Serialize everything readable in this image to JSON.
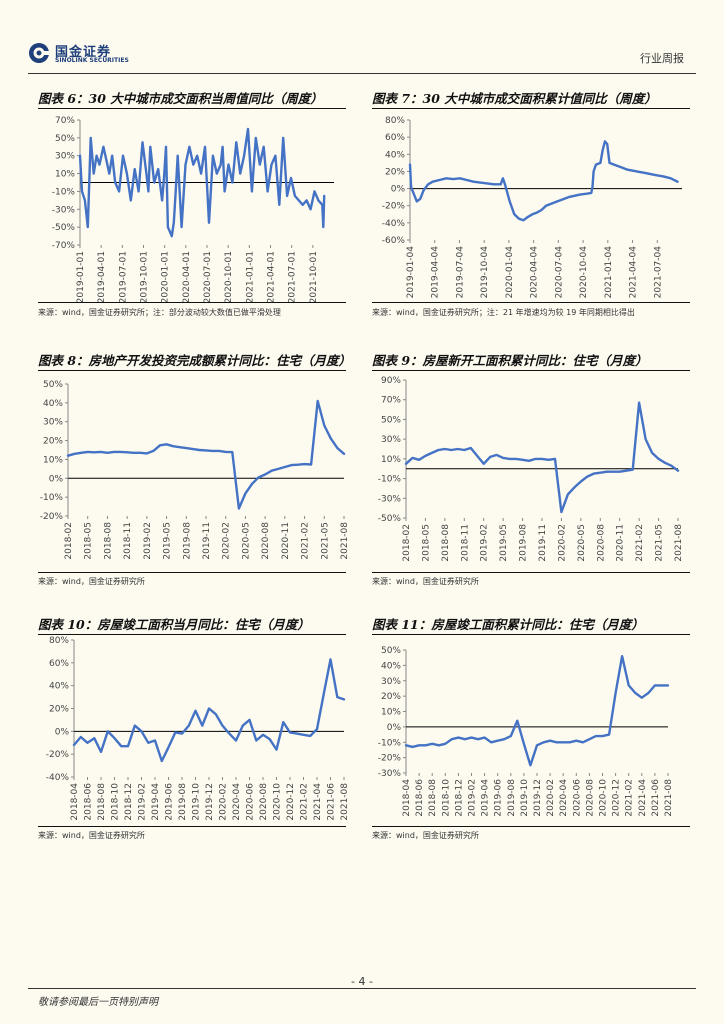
{
  "header": {
    "brand_cn": "国金证券",
    "brand_en": "SINOLINK SECURITIES",
    "report_type": "行业周报",
    "logo_color": "#1e3f7a"
  },
  "footer": {
    "page_number": "- 4 -",
    "disclaimer": "敬请参阅最后一页特别声明"
  },
  "line_color": "#4472c4",
  "chart_data": [
    {
      "id": "c6",
      "type": "line",
      "title": "图表 6：30 大中城市成交面积当周值同比（周度）",
      "source": "来源：wind，国金证券研究所；注：部分波动较大数值已做平滑处理",
      "ylim": [
        -70,
        70
      ],
      "yticks": [
        -70,
        -50,
        -30,
        -10,
        10,
        30,
        50,
        70
      ],
      "categories": [
        "2019-01-01",
        "2019-04-01",
        "2019-07-01",
        "2019-10-01",
        "2020-01-01",
        "2020-04-01",
        "2020-07-01",
        "2020-10-01",
        "2021-01-01",
        "2021-04-01",
        "2021-07-01",
        "2021-10-01"
      ],
      "xmax": 13,
      "x": [
        0,
        0.1,
        0.25,
        0.4,
        0.55,
        0.7,
        0.85,
        1,
        1.2,
        1.35,
        1.5,
        1.65,
        1.8,
        2,
        2.2,
        2.4,
        2.6,
        2.8,
        3,
        3.2,
        3.4,
        3.5,
        3.6,
        3.8,
        4,
        4.2,
        4.3,
        4.4,
        4.5,
        4.6,
        4.7,
        4.8,
        4.9,
        5,
        5.2,
        5.4,
        5.6,
        5.8,
        6,
        6.2,
        6.4,
        6.6,
        6.8,
        7,
        7.2,
        7.3,
        7.4,
        7.6,
        7.8,
        8,
        8.2,
        8.4,
        8.6,
        8.8,
        9,
        9.2,
        9.4,
        9.6,
        9.8,
        10,
        10.2,
        10.4,
        10.6,
        10.8,
        11,
        11.2,
        11.4,
        11.6,
        11.8,
        12,
        12.2,
        12.4,
        12.45,
        12.5
      ],
      "y": [
        30,
        -10,
        -20,
        -50,
        50,
        10,
        30,
        20,
        40,
        25,
        10,
        30,
        0,
        -10,
        30,
        10,
        -20,
        15,
        -10,
        45,
        10,
        -10,
        40,
        0,
        15,
        -20,
        5,
        40,
        -50,
        -55,
        -60,
        -45,
        -10,
        30,
        -50,
        20,
        40,
        20,
        30,
        10,
        40,
        -45,
        30,
        10,
        20,
        40,
        -10,
        20,
        0,
        45,
        10,
        30,
        60,
        -10,
        50,
        20,
        40,
        -10,
        20,
        30,
        -25,
        50,
        -15,
        5,
        -15,
        -20,
        -25,
        -20,
        -30,
        -10,
        -20,
        -25,
        -50,
        -15
      ]
    },
    {
      "id": "c7",
      "type": "line",
      "title": "图表 7：30 大中城市成交面积累计值同比（周度）",
      "source": "来源：wind，国金证券研究所；注：21 年增速均为较 19 年同期相比得出",
      "ylim": [
        -60,
        80
      ],
      "yticks": [
        -60,
        -40,
        -20,
        0,
        20,
        40,
        60,
        80
      ],
      "categories": [
        "2019-01-04",
        "2019-04-04",
        "2019-07-04",
        "2019-10-04",
        "2020-01-04",
        "2020-04-04",
        "2020-07-04",
        "2020-10-04",
        "2021-01-04",
        "2021-04-04",
        "2021-07-04"
      ],
      "xmax": 12,
      "x": [
        0,
        0.05,
        0.15,
        0.3,
        0.45,
        0.6,
        0.8,
        1,
        1.3,
        1.6,
        1.9,
        2.2,
        2.5,
        2.8,
        3.1,
        3.4,
        3.7,
        4,
        4.1,
        4.2,
        4.4,
        4.6,
        4.8,
        5,
        5.2,
        5.4,
        5.6,
        5.8,
        6,
        6.5,
        7,
        7.5,
        7.8,
        8,
        8.05,
        8.1,
        8.2,
        8.4,
        8.5,
        8.6,
        8.7,
        8.8,
        9,
        9.3,
        9.6,
        10,
        10.4,
        10.8,
        11.2,
        11.5,
        11.8
      ],
      "y": [
        28,
        2,
        -5,
        -15,
        -12,
        -2,
        5,
        8,
        10,
        12,
        11,
        12,
        10,
        8,
        7,
        6,
        5,
        5,
        12,
        4,
        -15,
        -30,
        -35,
        -37,
        -33,
        -30,
        -28,
        -25,
        -20,
        -15,
        -10,
        -7,
        -6,
        -5,
        2,
        20,
        28,
        30,
        45,
        55,
        52,
        30,
        28,
        25,
        22,
        20,
        18,
        16,
        14,
        12,
        8
      ]
    },
    {
      "id": "c8",
      "type": "line",
      "title": "图表 8：房地产开发投资完成额累计同比：住宅（月度）",
      "source": "来源：wind，国金证券研究所",
      "ylim": [
        -20,
        50
      ],
      "yticks": [
        -20,
        -10,
        0,
        10,
        20,
        30,
        40,
        50
      ],
      "categories": [
        "2018-02",
        "2018-05",
        "2018-08",
        "2018-11",
        "2019-02",
        "2019-05",
        "2019-08",
        "2019-11",
        "2020-02",
        "2020-05",
        "2020-08",
        "2020-11",
        "2021-02",
        "2021-05",
        "2021-08"
      ],
      "x": [
        0,
        1,
        2,
        3,
        4,
        5,
        6,
        7,
        8,
        9,
        10,
        11,
        12,
        13,
        14,
        15,
        16,
        17,
        18,
        19,
        20,
        21,
        22,
        23,
        24,
        25,
        26,
        27,
        28,
        29,
        30,
        31,
        32,
        33,
        34,
        35,
        36,
        37,
        38,
        39,
        40,
        41,
        42
      ],
      "y": [
        12,
        13,
        13.5,
        14,
        13.8,
        14,
        13.5,
        14,
        14,
        13.8,
        13.5,
        13.5,
        13.2,
        14.5,
        17.5,
        18,
        17,
        16.5,
        16,
        15.5,
        15,
        14.8,
        14.5,
        14.5,
        14,
        13.9,
        -16,
        -8,
        -3,
        0.5,
        2,
        4,
        5,
        6,
        7,
        7.2,
        7.5,
        7.3,
        41,
        28,
        21,
        16,
        13
      ]
    },
    {
      "id": "c9",
      "type": "line",
      "title": "图表 9：房屋新开工面积累计同比：住宅（月度）",
      "source": "来源：wind，国金证券研究所",
      "ylim": [
        -50,
        90
      ],
      "yticks": [
        -50,
        -30,
        -10,
        10,
        30,
        50,
        70,
        90
      ],
      "categories": [
        "2018-02",
        "2018-05",
        "2018-08",
        "2018-11",
        "2019-02",
        "2019-05",
        "2019-08",
        "2019-11",
        "2020-02",
        "2020-05",
        "2020-08",
        "2020-11",
        "2021-02",
        "2021-05",
        "2021-08"
      ],
      "x": [
        0,
        1,
        2,
        3,
        4,
        5,
        6,
        7,
        8,
        9,
        10,
        11,
        12,
        13,
        14,
        15,
        16,
        17,
        18,
        19,
        20,
        21,
        22,
        23,
        24,
        25,
        26,
        27,
        28,
        29,
        30,
        31,
        32,
        33,
        34,
        35,
        36,
        37,
        38,
        39,
        40,
        41,
        42
      ],
      "y": [
        5,
        11,
        9,
        13,
        16,
        19,
        20,
        19,
        20,
        19,
        21,
        13,
        5,
        12,
        14,
        11,
        10,
        10,
        9,
        8,
        10,
        10,
        9,
        10,
        -44,
        -26,
        -19,
        -13,
        -8,
        -5,
        -4,
        -3,
        -3,
        -3,
        -2,
        -1,
        67,
        30,
        16,
        10,
        6,
        3,
        -2
      ]
    },
    {
      "id": "c10",
      "type": "line",
      "title": "图表 10：房屋竣工面积当月同比：住宅（月度）",
      "source": "来源：wind，国金证券研究所",
      "ylim": [
        -40,
        80
      ],
      "yticks": [
        -40,
        -20,
        0,
        20,
        40,
        60,
        80
      ],
      "categories": [
        "2018-04",
        "2018-06",
        "2018-08",
        "2018-10",
        "2018-12",
        "2019-02",
        "2019-04",
        "2019-06",
        "2019-08",
        "2019-10",
        "2019-12",
        "2020-02",
        "2020-04",
        "2020-06",
        "2020-08",
        "2020-10",
        "2020-12",
        "2021-02",
        "2021-04",
        "2021-06",
        "2021-08"
      ],
      "x": [
        0,
        1,
        2,
        3,
        4,
        5,
        6,
        7,
        8,
        9,
        10,
        11,
        12,
        13,
        14,
        15,
        16,
        17,
        18,
        19,
        20,
        21,
        22,
        23,
        24,
        25,
        26,
        27,
        28,
        29,
        30,
        31,
        32,
        33,
        34,
        35,
        36,
        37,
        38,
        39,
        40
      ],
      "y": [
        -12,
        -5,
        -10,
        -6,
        -18,
        0,
        -6,
        -13,
        -13,
        5,
        0,
        -10,
        -8,
        -26,
        -14,
        -1,
        -2,
        5,
        18,
        5,
        20,
        15,
        5,
        -2,
        -8,
        5,
        10,
        -8,
        -3,
        -7,
        -16,
        8,
        -1,
        -2,
        -3,
        -4,
        2,
        33,
        63,
        30,
        28
      ]
    },
    {
      "id": "c11",
      "type": "line",
      "title": "图表 11：房屋竣工面积累计同比：住宅（月度）",
      "source": "来源：wind，国金证券研究所",
      "ylim": [
        -30,
        50
      ],
      "yticks": [
        -30,
        -20,
        -10,
        0,
        10,
        20,
        30,
        40,
        50
      ],
      "categories": [
        "2018-04",
        "2018-06",
        "2018-08",
        "2018-10",
        "2018-12",
        "2019-02",
        "2019-04",
        "2019-06",
        "2019-08",
        "2019-10",
        "2019-12",
        "2020-02",
        "2020-04",
        "2020-06",
        "2020-08",
        "2020-10",
        "2020-12",
        "2021-02",
        "2021-04",
        "2021-06",
        "2021-08"
      ],
      "x": [
        0,
        1,
        2,
        3,
        4,
        5,
        6,
        7,
        8,
        9,
        10,
        11,
        12,
        13,
        14,
        15,
        16,
        17,
        18,
        19,
        20,
        21,
        22,
        23,
        24,
        25,
        26,
        27,
        28,
        29,
        30,
        31,
        32,
        33,
        34,
        35,
        36,
        37,
        38,
        39,
        40
      ],
      "y": [
        -12,
        -13,
        -12,
        -12,
        -11,
        -12,
        -11,
        -8,
        -7,
        -8,
        -7,
        -8,
        -7,
        -10,
        -9,
        -8,
        -6,
        4,
        -11,
        -25,
        -12,
        -10,
        -9,
        -10,
        -10,
        -10,
        -9,
        -10,
        -8,
        -6,
        -6,
        -5,
        22,
        46,
        27,
        22,
        19,
        22,
        27,
        27,
        27
      ]
    }
  ]
}
